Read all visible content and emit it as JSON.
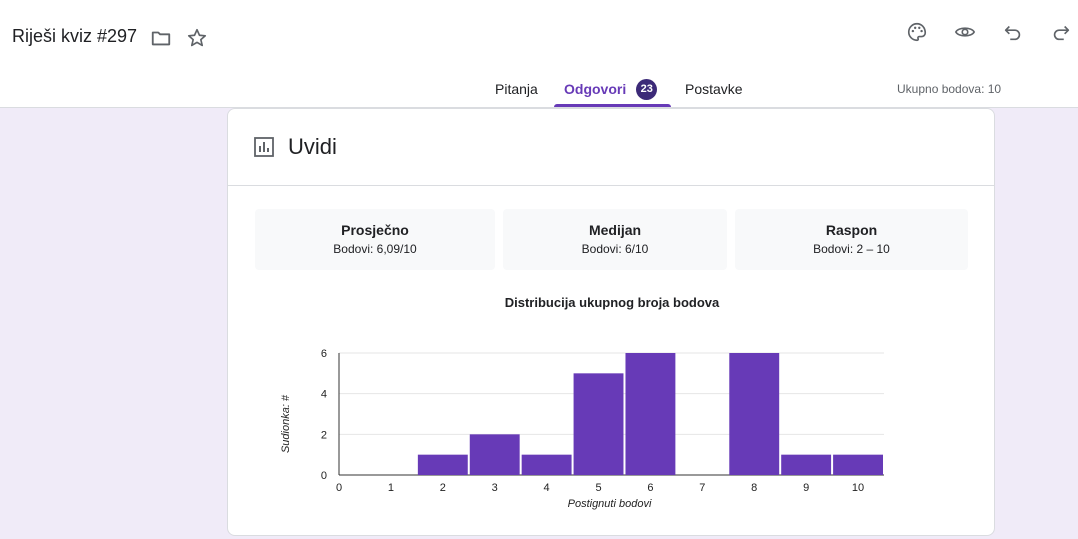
{
  "header": {
    "title": "Riješi kviz #297",
    "icons": [
      "folder-icon",
      "star-icon",
      "palette-icon",
      "eye-icon",
      "undo-icon",
      "redo-icon"
    ],
    "tabs": [
      {
        "label": "Pitanja",
        "active": false
      },
      {
        "label": "Odgovori",
        "active": true,
        "badge": "23"
      },
      {
        "label": "Postavke",
        "active": false
      }
    ],
    "points_total": "Ukupno bodova: 10"
  },
  "insights": {
    "title": "Uvidi",
    "stats": [
      {
        "label": "Prosječno",
        "value": "Bodovi: 6,09/10"
      },
      {
        "label": "Medijan",
        "value": "Bodovi: 6/10"
      },
      {
        "label": "Raspon",
        "value": "Bodovi: 2 – 10"
      }
    ]
  },
  "colors": {
    "accent": "#673ab7",
    "badge": "#3c2a78",
    "background": "#f0ebf8"
  },
  "chart_data": {
    "type": "bar",
    "title": "Distribucija ukupnog broja bodova",
    "xlabel": "Postignuti bodovi",
    "ylabel": "Sudionka: #",
    "categories": [
      "0",
      "1",
      "2",
      "3",
      "4",
      "5",
      "6",
      "7",
      "8",
      "9",
      "10"
    ],
    "values": [
      0,
      0,
      1,
      2,
      1,
      5,
      6,
      0,
      6,
      1,
      1
    ],
    "yticks": [
      0,
      2,
      4,
      6
    ],
    "ylim": [
      0,
      6
    ],
    "grid": true,
    "bar_color": "#673ab7"
  }
}
